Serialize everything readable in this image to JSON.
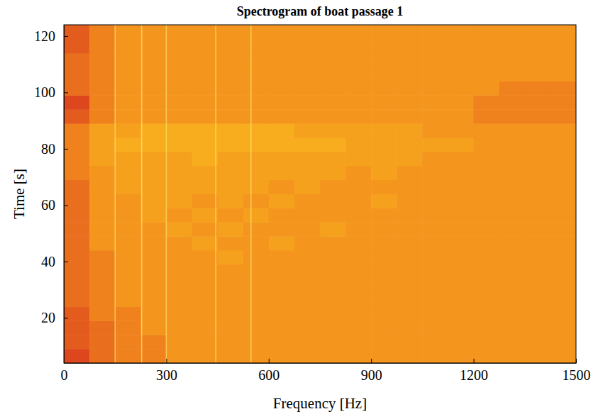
{
  "chart_data": {
    "type": "heatmap",
    "title": "Spectrogram of boat passage 1",
    "x_label": "Frequency [Hz]",
    "y_label": "Time [s]",
    "xlim": [
      0,
      1500
    ],
    "ylim": [
      4,
      124
    ],
    "xticks": [
      0,
      300,
      600,
      900,
      1200,
      1500
    ],
    "yticks": [
      20,
      40,
      60,
      80,
      100,
      120
    ],
    "x_edges": [
      0,
      75,
      150,
      225,
      300,
      375,
      450,
      525,
      600,
      675,
      750,
      825,
      900,
      975,
      1050,
      1125,
      1200,
      1275,
      1350,
      1425,
      1500
    ],
    "y_edges": [
      4,
      9,
      14,
      19,
      24,
      29,
      34,
      39,
      44,
      49,
      54,
      59,
      64,
      69,
      74,
      79,
      84,
      89,
      94,
      99,
      104,
      109,
      114,
      119,
      124
    ],
    "zlim": [
      0,
      10
    ],
    "colors": [
      "#d9341e",
      "#f4951d",
      "#ffd21f"
    ],
    "cells": [
      [
        1,
        3,
        4,
        4,
        5,
        5,
        5,
        5,
        5,
        5,
        5,
        5,
        5,
        5,
        5,
        5,
        5,
        5,
        5,
        5
      ],
      [
        2,
        3,
        4,
        4,
        5,
        5,
        5,
        5,
        5,
        5,
        5,
        5,
        5,
        5,
        5,
        5,
        5,
        5,
        5,
        5
      ],
      [
        2,
        3,
        4,
        5,
        5,
        5,
        5,
        5,
        5,
        5,
        5,
        5,
        5,
        5,
        5,
        5,
        5,
        5,
        5,
        5
      ],
      [
        2,
        4,
        4,
        5,
        5,
        5,
        5,
        5,
        5,
        5,
        5,
        5,
        5,
        5,
        5,
        5,
        5,
        5,
        5,
        5
      ],
      [
        3,
        4,
        5,
        5,
        5,
        5,
        5,
        5,
        5,
        5,
        5,
        5,
        5,
        5,
        5,
        5,
        5,
        5,
        5,
        5
      ],
      [
        3,
        4,
        5,
        5,
        5,
        5,
        5,
        5,
        5,
        5,
        5,
        5,
        5,
        5,
        5,
        5,
        5,
        5,
        5,
        5
      ],
      [
        3,
        4,
        5,
        5,
        5,
        5,
        5,
        5,
        5,
        5,
        5,
        5,
        5,
        5,
        5,
        5,
        5,
        5,
        5,
        5
      ],
      [
        3,
        4,
        5,
        5,
        5,
        5,
        6,
        5,
        5,
        5,
        5,
        5,
        5,
        5,
        5,
        5,
        5,
        5,
        5,
        5
      ],
      [
        3,
        5,
        5,
        5,
        5,
        6,
        5,
        5,
        6,
        5,
        5,
        5,
        5,
        5,
        5,
        5,
        5,
        5,
        5,
        5
      ],
      [
        3,
        5,
        5,
        5,
        6,
        5,
        6,
        5,
        5,
        5,
        6,
        5,
        5,
        5,
        5,
        5,
        5,
        5,
        5,
        5
      ],
      [
        3,
        5,
        5,
        6,
        5,
        6,
        5,
        6,
        5,
        5,
        5,
        5,
        5,
        5,
        5,
        5,
        5,
        5,
        5,
        5
      ],
      [
        3,
        5,
        5,
        6,
        6,
        5,
        6,
        5,
        6,
        5,
        5,
        5,
        6,
        5,
        5,
        5,
        5,
        5,
        5,
        5
      ],
      [
        3,
        5,
        6,
        6,
        6,
        6,
        6,
        6,
        5,
        6,
        5,
        5,
        5,
        5,
        5,
        5,
        5,
        5,
        5,
        5
      ],
      [
        4,
        5,
        6,
        6,
        6,
        6,
        6,
        6,
        6,
        6,
        6,
        5,
        6,
        5,
        5,
        5,
        5,
        5,
        5,
        5
      ],
      [
        4,
        6,
        6,
        6,
        6,
        7,
        6,
        6,
        6,
        6,
        6,
        6,
        6,
        6,
        5,
        5,
        5,
        5,
        5,
        5
      ],
      [
        4,
        6,
        7,
        7,
        7,
        7,
        7,
        7,
        7,
        7,
        7,
        6,
        6,
        6,
        6,
        6,
        5,
        5,
        5,
        5
      ],
      [
        4,
        6,
        6,
        7,
        7,
        7,
        7,
        7,
        7,
        6,
        6,
        6,
        6,
        6,
        5,
        5,
        5,
        5,
        5,
        5
      ],
      [
        2,
        4,
        5,
        5,
        5,
        5,
        5,
        5,
        5,
        5,
        5,
        5,
        5,
        5,
        5,
        5,
        4,
        4,
        4,
        4
      ],
      [
        1,
        4,
        5,
        5,
        5,
        5,
        5,
        5,
        5,
        5,
        5,
        5,
        5,
        5,
        5,
        5,
        4,
        4,
        4,
        4
      ],
      [
        3,
        4,
        5,
        5,
        5,
        5,
        5,
        5,
        5,
        5,
        5,
        5,
        5,
        5,
        5,
        5,
        5,
        4,
        4,
        4
      ],
      [
        3,
        4,
        5,
        5,
        5,
        5,
        5,
        5,
        5,
        5,
        5,
        5,
        5,
        5,
        5,
        5,
        5,
        5,
        5,
        5
      ],
      [
        3,
        4,
        5,
        5,
        5,
        5,
        5,
        5,
        5,
        5,
        5,
        5,
        5,
        5,
        5,
        5,
        5,
        5,
        5,
        5
      ],
      [
        2,
        4,
        5,
        5,
        5,
        5,
        5,
        5,
        5,
        5,
        5,
        5,
        5,
        5,
        5,
        5,
        5,
        5,
        5,
        5
      ],
      [
        2,
        4,
        5,
        5,
        5,
        5,
        5,
        5,
        5,
        5,
        5,
        5,
        5,
        5,
        5,
        5,
        5,
        5,
        5,
        5
      ]
    ],
    "tonals": [
      150,
      228,
      300,
      445,
      548
    ]
  }
}
